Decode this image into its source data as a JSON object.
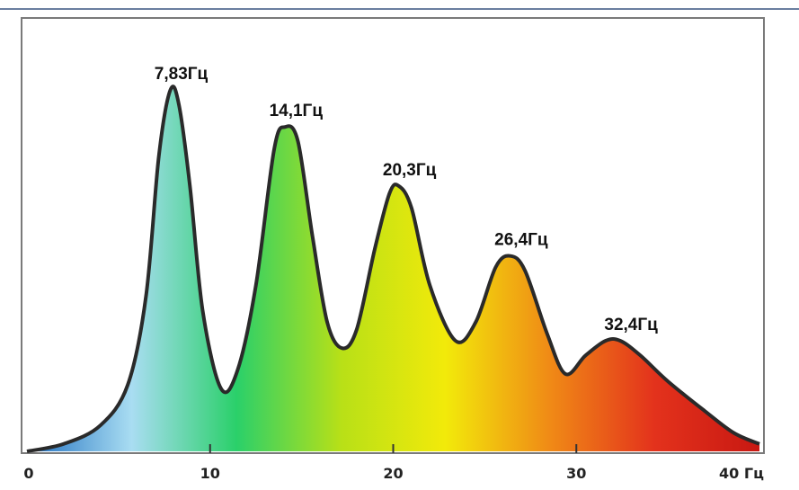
{
  "chart_data": {
    "type": "area",
    "title": "",
    "xlabel": "",
    "ylabel": "",
    "x_unit": "Гц",
    "xlim": [
      0,
      40
    ],
    "ylim": [
      0,
      1
    ],
    "x_ticks": [
      {
        "value": 0,
        "label": "0"
      },
      {
        "value": 10,
        "label": "10"
      },
      {
        "value": 20,
        "label": "20"
      },
      {
        "value": 30,
        "label": "30"
      },
      {
        "value": 40,
        "label": "40 Гц"
      }
    ],
    "peaks": [
      {
        "x": 7.83,
        "y": 0.98,
        "label": "7,83Гц"
      },
      {
        "x": 14.1,
        "y": 0.88,
        "label": "14,1Гц"
      },
      {
        "x": 20.3,
        "y": 0.72,
        "label": "20,3Гц"
      },
      {
        "x": 26.4,
        "y": 0.53,
        "label": "26,4Гц"
      },
      {
        "x": 32.4,
        "y": 0.3,
        "label": "32,4Гц"
      }
    ],
    "troughs": [
      {
        "x": 10.6,
        "y": 0.17
      },
      {
        "x": 17.2,
        "y": 0.28
      },
      {
        "x": 23.4,
        "y": 0.3
      },
      {
        "x": 29.4,
        "y": 0.21
      }
    ],
    "curve": [
      [
        0.0,
        0.0
      ],
      [
        2.0,
        0.02
      ],
      [
        4.0,
        0.07
      ],
      [
        5.5,
        0.18
      ],
      [
        6.5,
        0.42
      ],
      [
        7.2,
        0.8
      ],
      [
        7.83,
        0.98
      ],
      [
        8.3,
        0.94
      ],
      [
        8.9,
        0.72
      ],
      [
        9.6,
        0.38
      ],
      [
        10.6,
        0.17
      ],
      [
        11.5,
        0.22
      ],
      [
        12.5,
        0.45
      ],
      [
        13.5,
        0.82
      ],
      [
        14.1,
        0.88
      ],
      [
        14.8,
        0.84
      ],
      [
        15.6,
        0.58
      ],
      [
        16.4,
        0.35
      ],
      [
        17.2,
        0.28
      ],
      [
        18.0,
        0.33
      ],
      [
        19.0,
        0.55
      ],
      [
        19.8,
        0.7
      ],
      [
        20.3,
        0.72
      ],
      [
        21.0,
        0.66
      ],
      [
        22.0,
        0.45
      ],
      [
        23.4,
        0.3
      ],
      [
        24.5,
        0.35
      ],
      [
        25.6,
        0.5
      ],
      [
        26.4,
        0.53
      ],
      [
        27.2,
        0.49
      ],
      [
        28.4,
        0.32
      ],
      [
        29.4,
        0.21
      ],
      [
        30.5,
        0.26
      ],
      [
        31.6,
        0.3
      ],
      [
        32.4,
        0.3
      ],
      [
        33.5,
        0.26
      ],
      [
        35.0,
        0.19
      ],
      [
        37.0,
        0.11
      ],
      [
        38.6,
        0.05
      ],
      [
        40.0,
        0.02
      ]
    ],
    "gradient_colors": [
      "#1f6fc0",
      "#a9ddf2",
      "#2ad06a",
      "#b8e017",
      "#f2ea0a",
      "#f08a16",
      "#e3321c",
      "#c81812"
    ],
    "line_color": "#2a2a2a",
    "grid": false,
    "legend": "none"
  }
}
